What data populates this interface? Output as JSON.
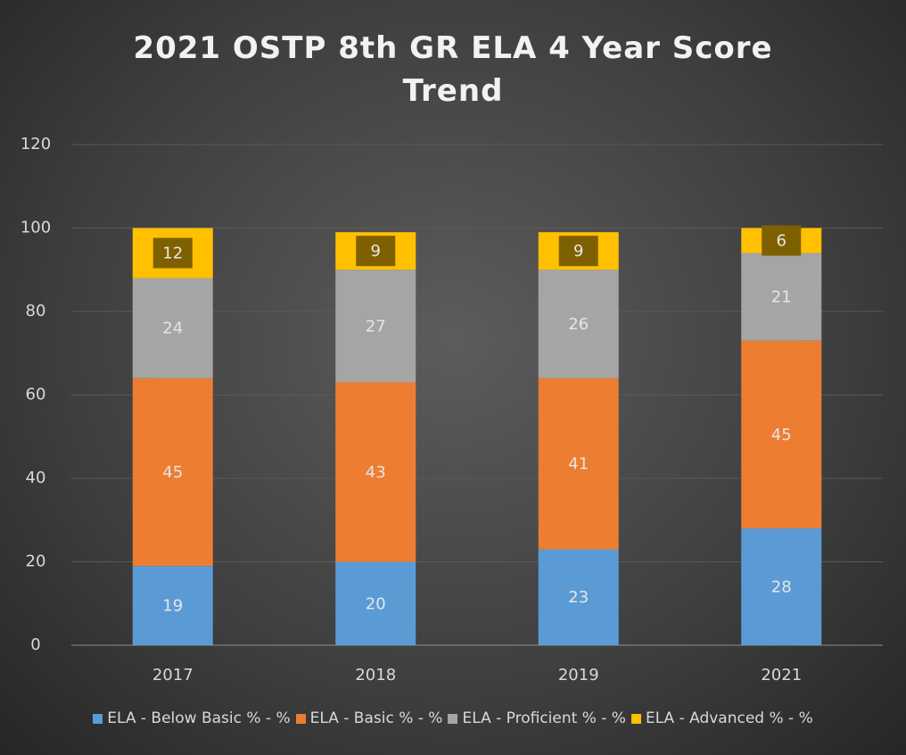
{
  "chart_data": {
    "type": "stacked_bar",
    "title": "2021 OSTP 8th GR ELA 4 Year Score Trend",
    "categories": [
      "2017",
      "2018",
      "2019",
      "2021"
    ],
    "series": [
      {
        "name": "ELA - Below Basic % - %",
        "color": "#5b9bd5",
        "values": [
          19,
          20,
          23,
          28
        ]
      },
      {
        "name": "ELA - Basic % - %",
        "color": "#ed7d31",
        "values": [
          45,
          43,
          41,
          45
        ]
      },
      {
        "name": "ELA - Proficient % - %",
        "color": "#a5a5a5",
        "values": [
          24,
          27,
          26,
          21
        ]
      },
      {
        "name": "ELA - Advanced % - %",
        "color": "#ffc000",
        "values": [
          12,
          9,
          9,
          6
        ]
      }
    ],
    "ylim": [
      0,
      120
    ],
    "yticks": [
      0,
      20,
      40,
      60,
      80,
      100,
      120
    ],
    "grid": true,
    "legend": "bottom"
  }
}
